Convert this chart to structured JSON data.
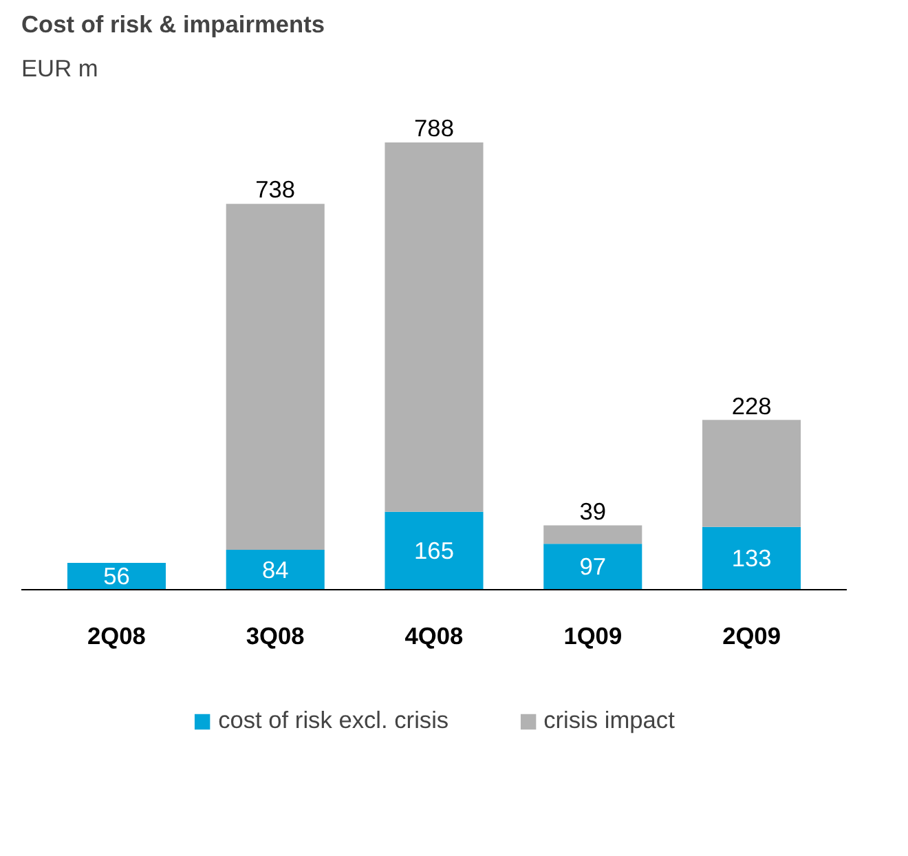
{
  "chart_data": {
    "type": "bar",
    "stacked": true,
    "title": "Cost of risk & impairments",
    "subtitle": "EUR m",
    "categories": [
      "2Q08",
      "3Q08",
      "4Q08",
      "1Q09",
      "2Q09"
    ],
    "series": [
      {
        "name": "cost of risk excl. crisis",
        "color": "#00a5d9",
        "values": [
          56,
          84,
          165,
          97,
          133
        ]
      },
      {
        "name": "crisis impact",
        "color": "#b2b2b2",
        "values": [
          null,
          738,
          788,
          39,
          228
        ]
      }
    ],
    "data_labels": true,
    "legend": "bottom",
    "grid": false
  }
}
